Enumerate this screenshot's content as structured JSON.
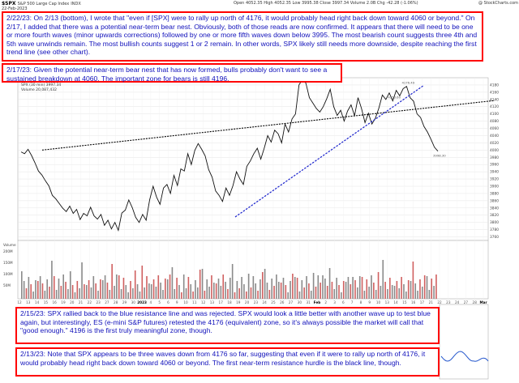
{
  "header": {
    "ticker": "$SPX",
    "name": "S&P 500 Large Cap Index",
    "exchange": "INDX",
    "ohlc": "Open 4052.35  High 4052.35  Low 3995.38  Close 3997.34  Volume 2.0B  Chg -42.28 (-1.06%)",
    "date": "22-Feb-2023",
    "credit": "@ StockCharts.com"
  },
  "legend": {
    "price": "SPX (30 min) 3997.34",
    "volume": "Volume 20,087,432"
  },
  "notes": {
    "note1": "2/22/23: On 2/13 (bottom), I wrote that \"even if [SPX] were to rally up north of 4176, it would probably head right back down toward 4060 or beyond.\" On 2/17, I added that there was a potential near-term bear nest. Obviously, both of those reads are now confirmed. It appears that there will need to be one or more fourth waves (minor upwards corrections) followed by one or more fifth waves down below 3995. The most bearish count suggests three 4th and 5th wave unwinds remain. The most bullish counts suggest 1 or 2 remain. In other words, SPX likely still needs more downside, despite reaching the first trend line (see other chart).",
    "note2": "2/17/23: Given the potential near-term bear nest that has now formed, bulls probably don't want to see a sustained breakdown at 4060. The important zone for bears is still 4196.",
    "note3": "2/15/23: SPX rallied back to the blue resistance line and was rejected. SPX would look a little better with another wave up to test blue again, but interestingly, ES (e-mini S&P futures) retested the 4176 (equivalent) zone, so it's always possible the market will call that \"good enough.\" 4196 is the first truly meaningful zone, though.",
    "note4": "2/13/23: Note that SPX appears to be three waves down from 4176 so far, suggesting that even if it were to rally up north of 4176, it would probably head right back down toward 4060 or beyond. The first near-term resistance hurdle is the black line, though."
  },
  "chart_data": {
    "type": "line",
    "title": "$SPX S&P 500 Large Cap Index INDX",
    "timeframe": "30 min",
    "x_labels": [
      "12",
      "13",
      "14",
      "15",
      "16",
      "19",
      "20",
      "21",
      "22",
      "23",
      "27",
      "28",
      "29",
      "30",
      "2023",
      "4",
      "5",
      "6",
      "9",
      "10",
      "11",
      "12",
      "13",
      "17",
      "18",
      "19",
      "20",
      "23",
      "24",
      "25",
      "26",
      "27",
      "30",
      "31",
      "Feb",
      "2",
      "3",
      "6",
      "7",
      "8",
      "9",
      "10",
      "13",
      "14",
      "15",
      "16",
      "17",
      "21",
      "22",
      "23",
      "24",
      "27",
      "28",
      "Mar"
    ],
    "y_ticks": [
      3760,
      3780,
      3800,
      3820,
      3840,
      3860,
      3880,
      3900,
      3920,
      3940,
      3960,
      3980,
      4000,
      4020,
      4040,
      4060,
      4080,
      4100,
      4120,
      4140,
      4160,
      4180
    ],
    "y_range": [
      3750,
      4200
    ],
    "volume_label": "Volume",
    "volume_ticks": [
      "200M",
      "150M",
      "100M",
      "50M"
    ],
    "point_labels": [
      "4195.44",
      "4176.49",
      "4153.60",
      "3998.30"
    ],
    "series": [
      {
        "values": [
          3995,
          3990,
          4002,
          3985,
          3965,
          3942,
          3931,
          3915,
          3901,
          3875,
          3865,
          3852,
          3839,
          3830,
          3845,
          3825,
          3836,
          3808,
          3825,
          3818,
          3842,
          3818,
          3809,
          3822,
          3792,
          3806,
          3782,
          3800,
          3778,
          3826,
          3834,
          3862,
          3841,
          3814,
          3800,
          3822,
          3806,
          3862,
          3900,
          3870,
          3850,
          3895,
          3905,
          3880,
          3930,
          3902,
          3948,
          3942,
          3990,
          3960,
          3999,
          4018,
          4002,
          3984,
          3946,
          3925,
          3887,
          3875,
          3858,
          3895,
          3875,
          3902,
          3940,
          3920,
          3905,
          3955,
          3970,
          3990,
          4005,
          3975,
          4005,
          4040,
          4022,
          4055,
          4045,
          4020,
          4072,
          4050,
          4086,
          4100,
          4180,
          4195,
          4185,
          4145,
          4130,
          4115,
          4105,
          4120,
          4142,
          4168,
          4120,
          4096,
          4110,
          4080,
          4108,
          4125,
          4095,
          4145,
          4115,
          4076,
          4102,
          4072,
          4088,
          4116,
          4152,
          4140,
          4158,
          4136,
          4165,
          4150,
          4170,
          4176,
          4145,
          4135,
          4100,
          4090,
          4065,
          4050,
          4030,
          4008,
          3997
        ]
      }
    ],
    "trend_lines": [
      {
        "name": "black line",
        "color": "#000000",
        "from": [
          52,
          4000
        ],
        "to": [
          610,
          4137
        ]
      },
      {
        "name": "blue resistance line",
        "color": "#1a22cc",
        "from": [
          290,
          3815
        ],
        "to": [
          522,
          4178
        ]
      }
    ]
  }
}
